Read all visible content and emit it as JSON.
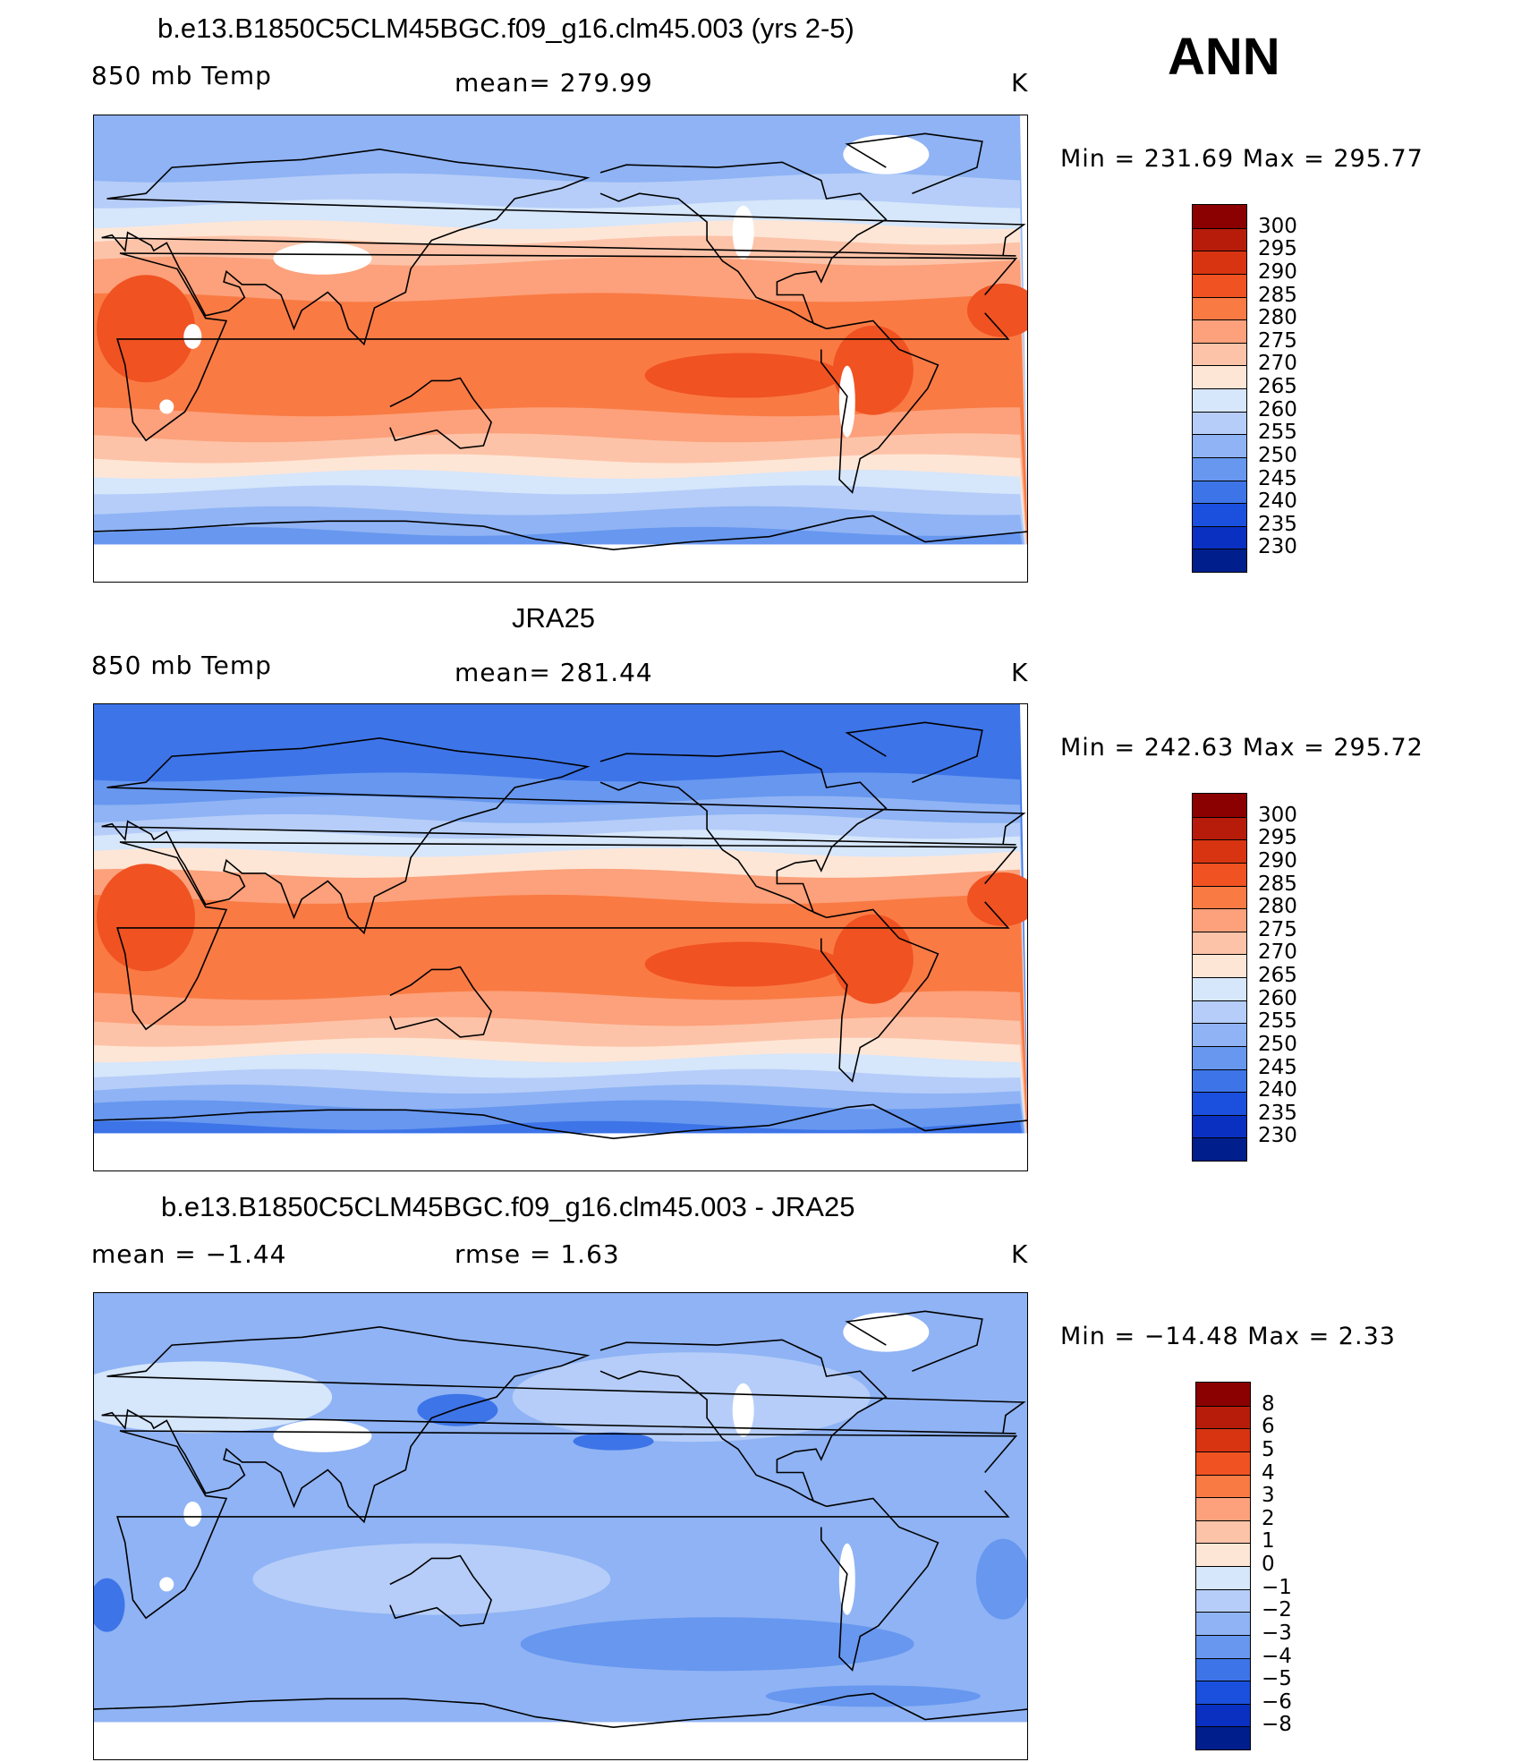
{
  "season": "ANN",
  "panels": [
    {
      "id": "model",
      "title": "b.e13.B1850C5CLM45BGC.f09_g16.clm45.003 (yrs 2-5)",
      "left_label": "850 mb Temp",
      "center_label": "mean= 279.99",
      "units": "K",
      "minmax": "Min = 231.69 Max = 295.77",
      "map_kind": "absolute-model"
    },
    {
      "id": "obs",
      "title": "JRA25",
      "left_label": "850 mb Temp",
      "center_label": "mean= 281.44",
      "units": "K",
      "minmax": "Min = 242.63 Max = 295.72",
      "map_kind": "absolute-obs"
    },
    {
      "id": "diff",
      "title": "b.e13.B1850C5CLM45BGC.f09_g16.clm45.003 - JRA25",
      "left_label": "mean =    −1.44",
      "center_label": "rmse =    1.63",
      "units": "K",
      "minmax": "Min = −14.48 Max =    2.33",
      "map_kind": "difference"
    }
  ],
  "colorbars": {
    "absolute": {
      "labels": [
        "300",
        "295",
        "290",
        "285",
        "280",
        "275",
        "270",
        "265",
        "260",
        "255",
        "250",
        "245",
        "240",
        "235",
        "230"
      ],
      "colors": [
        "#8b0000",
        "#b71c0a",
        "#d83411",
        "#f05222",
        "#fa7a44",
        "#fca17b",
        "#fdc3a8",
        "#fee6d6",
        "#d6e6fb",
        "#b5cdf8",
        "#8fb3f4",
        "#6797ef",
        "#3d74e8",
        "#1a50dd",
        "#0a30c2",
        "#001f8c"
      ]
    },
    "difference": {
      "labels": [
        "8",
        "6",
        "5",
        "4",
        "3",
        "2",
        "1",
        "0",
        "−1",
        "−2",
        "−3",
        "−4",
        "−5",
        "−6",
        "−8"
      ],
      "colors": [
        "#8b0000",
        "#b71c0a",
        "#d83411",
        "#f05222",
        "#fa7a44",
        "#fca17b",
        "#fdc3a8",
        "#fee6d6",
        "#d6e6fb",
        "#b5cdf8",
        "#8fb3f4",
        "#6797ef",
        "#3d74e8",
        "#1a50dd",
        "#0a30c2",
        "#001f8c"
      ]
    }
  }
}
